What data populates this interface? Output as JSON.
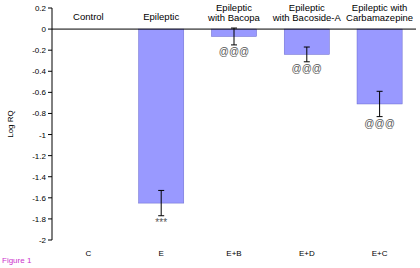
{
  "chart_data": {
    "type": "bar",
    "y_label": "Log RQ",
    "categories": [
      "C",
      "E",
      "E+B",
      "E+D",
      "E+C"
    ],
    "values": [
      0,
      -1.65,
      -0.07,
      -0.24,
      -0.71
    ],
    "errors": [
      0,
      0.12,
      0.08,
      0.07,
      0.12
    ],
    "annotations": [
      [
        "Control"
      ],
      [
        "Epileptic"
      ],
      [
        "Epileptic",
        "with Bacopa"
      ],
      [
        "Epileptic",
        "with Bacoside-A"
      ],
      [
        "Epileptic with",
        "Carbamazepine"
      ]
    ],
    "significance": [
      null,
      "***",
      "@@@",
      "@@@",
      "@@@"
    ],
    "caption": "Figure 1",
    "color": "#9999ff",
    "ylim": [
      -2,
      0.2
    ],
    "yticks": [
      0.2,
      0,
      -0.2,
      -0.4,
      -0.6,
      -0.8,
      -1,
      -1.2,
      -1.4,
      -1.6,
      -1.8,
      -2
    ],
    "grid": false
  }
}
